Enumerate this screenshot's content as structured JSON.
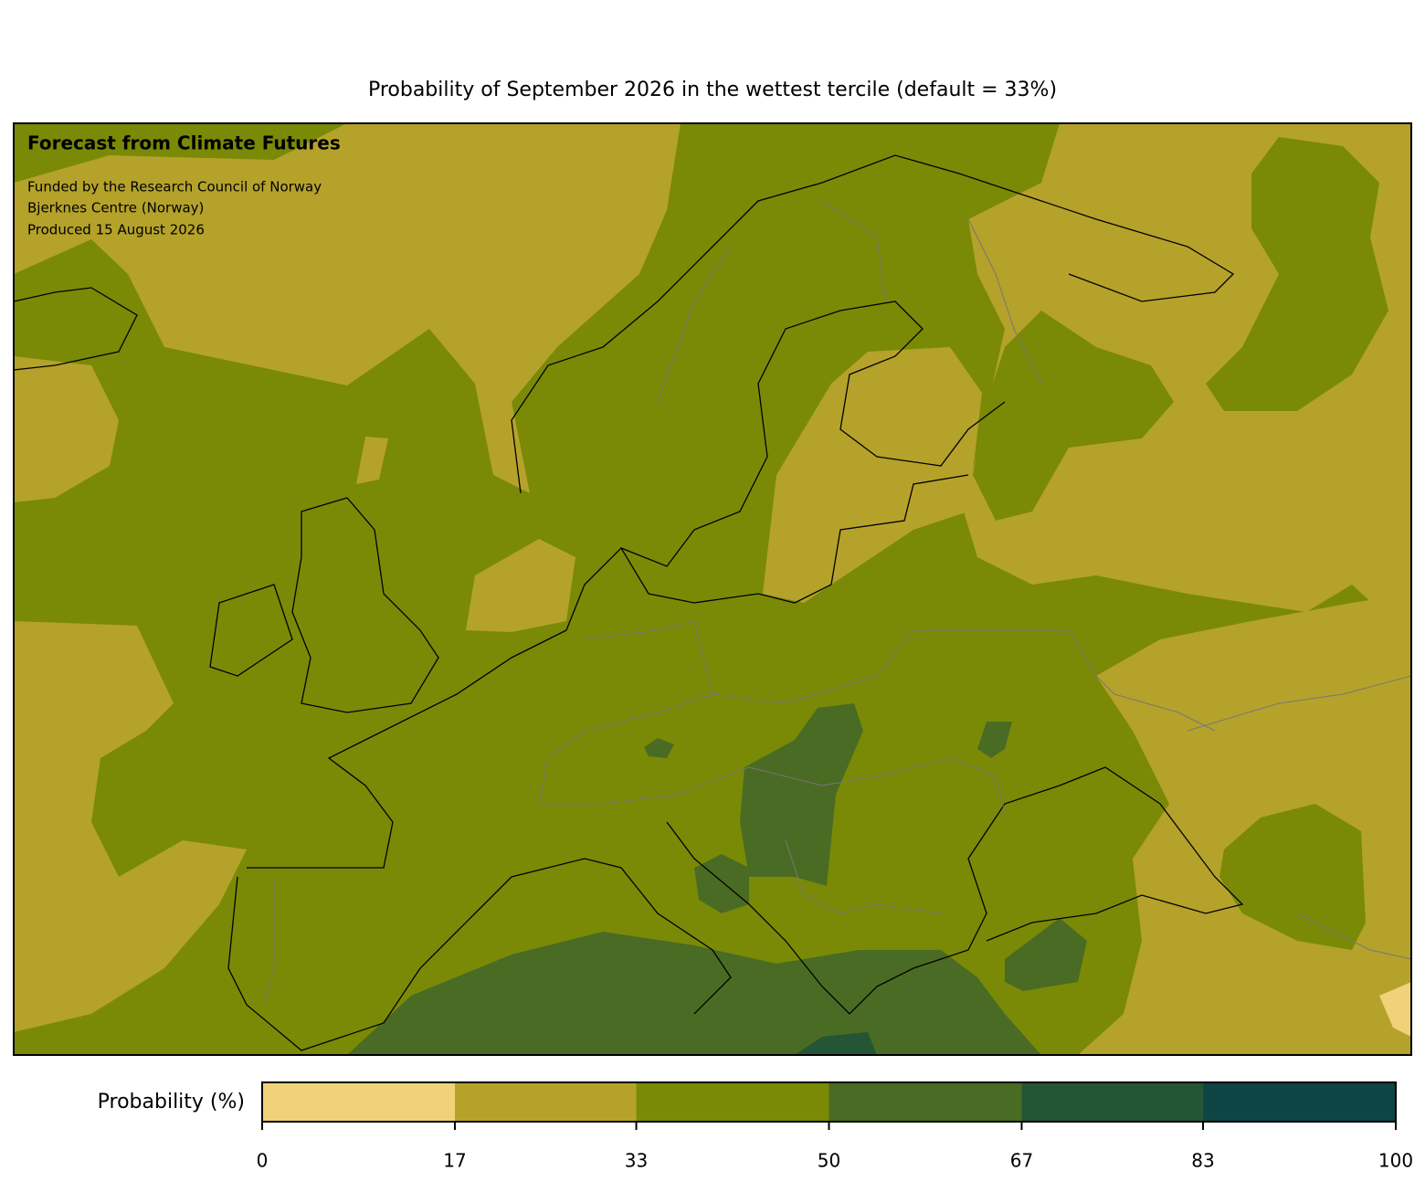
{
  "title": "Probability of September 2026 in the wettest tercile (default = 33%)",
  "annotation": {
    "heading": "Forecast from Climate Futures",
    "lines": [
      "Funded by the Research Council of Norway",
      "Bjerknes Centre (Norway)",
      "Produced 15 August 2026"
    ]
  },
  "colorbar": {
    "label": "Probability (%)",
    "bounds": [
      0,
      17,
      33,
      50,
      67,
      83,
      100
    ],
    "colors": [
      "#efd27a",
      "#b5a22a",
      "#7a8a06",
      "#4a6b23",
      "#245535",
      "#0f4444"
    ]
  }
}
